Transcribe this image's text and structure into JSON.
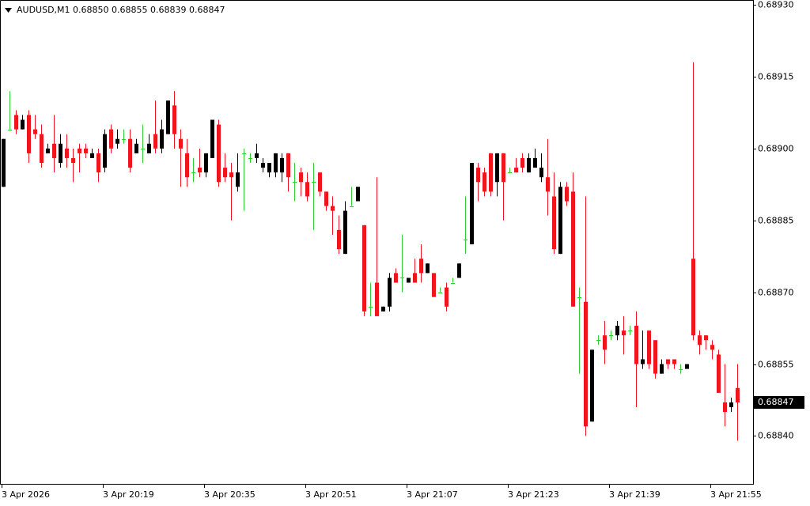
{
  "chart_data": {
    "type": "candlestick",
    "title": "AUDUSD,M1  0.68850 0.68855 0.68839 0.68847",
    "categories": [
      "3 Apr 2026",
      null,
      null,
      null,
      null,
      null,
      null,
      null,
      null,
      null,
      null,
      null,
      null,
      null,
      null,
      null,
      "3 Apr 20:19",
      null,
      null,
      null,
      null,
      null,
      null,
      null,
      null,
      null,
      null,
      null,
      null,
      null,
      null,
      null,
      "3 Apr 20:35",
      null,
      null,
      null,
      null,
      null,
      null,
      null,
      null,
      null,
      null,
      null,
      null,
      null,
      null,
      null,
      "3 Apr 20:51",
      null,
      null,
      null,
      null,
      null,
      null,
      null,
      null,
      null,
      null,
      null,
      null,
      null,
      null,
      null,
      "3 Apr 21:07",
      null,
      null,
      null,
      null,
      null,
      null,
      null,
      null,
      null,
      null,
      null,
      null,
      null,
      null,
      null,
      "3 Apr 21:23",
      null,
      null,
      null,
      null,
      null,
      null,
      null,
      null,
      null,
      null,
      null,
      null,
      null,
      null,
      null,
      "3 Apr 21:39",
      null,
      null,
      null,
      null,
      null,
      null,
      null,
      null,
      null,
      null,
      null,
      null,
      null,
      null,
      null,
      "3 Apr 21:55",
      null,
      null,
      null,
      null
    ],
    "open": [
      0.68892,
      0.68904,
      0.68907,
      0.68904,
      0.68907,
      0.68904,
      0.68903,
      0.68899,
      0.68901,
      0.68897,
      0.689,
      0.68898,
      0.689,
      0.689,
      0.68898,
      0.68899,
      0.68896,
      0.68904,
      0.68901,
      0.68902,
      0.68902,
      0.68899,
      0.689,
      0.68899,
      0.68903,
      0.689,
      0.68903,
      0.68909,
      0.68902,
      0.68899,
      0.68895,
      0.68896,
      0.68895,
      0.68898,
      0.68905,
      0.68896,
      0.68895,
      0.68892,
      0.68899,
      0.68898,
      0.68898,
      0.68896,
      0.68895,
      0.68895,
      0.68895,
      0.68899,
      0.68893,
      0.68895,
      0.68893,
      0.68893,
      0.68895,
      0.68891,
      0.68888,
      0.68883,
      0.68878,
      0.68888,
      0.68889,
      0.68884,
      0.68867,
      0.68872,
      0.68866,
      0.68867,
      0.68874,
      0.68873,
      0.68872,
      0.68874,
      0.68877,
      0.68874,
      0.68874,
      0.6887,
      0.68871,
      0.68872,
      0.68873,
      0.68881,
      0.6888,
      0.68896,
      0.68895,
      0.68899,
      0.68893,
      0.68899,
      0.68895,
      0.68896,
      0.68898,
      0.68895,
      0.68896,
      0.68894,
      0.68894,
      0.6889,
      0.68878,
      0.68892,
      0.68891,
      0.68869,
      0.68868,
      0.68843,
      0.6886,
      0.68861,
      0.68861,
      0.68861,
      0.68862,
      0.68862,
      0.68863,
      0.68855,
      0.68862,
      0.6886,
      0.68853,
      0.68856,
      0.68856,
      0.68854,
      0.68854,
      0.68877,
      0.68861,
      0.68861,
      0.68859,
      0.68857,
      0.68847,
      0.68846,
      0.6885
    ],
    "high": [
      0.68902,
      0.68912,
      0.68908,
      0.68907,
      0.68908,
      0.68907,
      0.68905,
      0.68901,
      0.68907,
      0.68903,
      0.68903,
      0.689,
      0.68901,
      0.68901,
      0.689,
      0.689,
      0.68904,
      0.68905,
      0.68904,
      0.68904,
      0.68904,
      0.68902,
      0.68905,
      0.68903,
      0.6891,
      0.68906,
      0.6891,
      0.68912,
      0.68904,
      0.68902,
      0.68898,
      0.689,
      0.68899,
      0.68906,
      0.68906,
      0.68899,
      0.68897,
      0.68899,
      0.689,
      0.68899,
      0.68901,
      0.68898,
      0.68897,
      0.68899,
      0.68899,
      0.68899,
      0.68897,
      0.68896,
      0.68895,
      0.68897,
      0.68895,
      0.68891,
      0.6889,
      0.68886,
      0.68889,
      0.68892,
      0.68892,
      0.68884,
      0.68872,
      0.68894,
      0.68867,
      0.68874,
      0.68875,
      0.68882,
      0.68873,
      0.68877,
      0.6888,
      0.68876,
      0.68874,
      0.68871,
      0.68872,
      0.68873,
      0.68876,
      0.6889,
      0.68897,
      0.68897,
      0.68896,
      0.68899,
      0.68899,
      0.68899,
      0.68896,
      0.68898,
      0.68899,
      0.68899,
      0.689,
      0.68899,
      0.68902,
      0.68895,
      0.68893,
      0.68893,
      0.68895,
      0.68871,
      0.6889,
      0.68858,
      0.68861,
      0.68864,
      0.68862,
      0.68864,
      0.68865,
      0.68863,
      0.68866,
      0.68862,
      0.68862,
      0.6886,
      0.68856,
      0.68856,
      0.68856,
      0.68855,
      0.68855,
      0.68918,
      0.68862,
      0.68861,
      0.6886,
      0.68858,
      0.68855,
      0.68848,
      0.68855
    ],
    "low": [
      0.68892,
      0.68904,
      0.68903,
      0.68904,
      0.68897,
      0.68902,
      0.68896,
      0.68899,
      0.68895,
      0.68896,
      0.68896,
      0.68893,
      0.68895,
      0.68898,
      0.68898,
      0.68893,
      0.68895,
      0.68899,
      0.689,
      0.68901,
      0.68895,
      0.68899,
      0.68897,
      0.68899,
      0.68899,
      0.68899,
      0.68903,
      0.689,
      0.68892,
      0.68892,
      0.68893,
      0.68894,
      0.68894,
      0.68898,
      0.68892,
      0.68893,
      0.68885,
      0.68891,
      0.68887,
      0.68897,
      0.68897,
      0.68895,
      0.68894,
      0.68894,
      0.68893,
      0.68891,
      0.68889,
      0.6889,
      0.68889,
      0.68883,
      0.6889,
      0.68887,
      0.68882,
      0.68878,
      0.68878,
      0.68888,
      0.68889,
      0.68865,
      0.68865,
      0.68865,
      0.68866,
      0.68866,
      0.68872,
      0.6887,
      0.68872,
      0.68872,
      0.68872,
      0.68874,
      0.68869,
      0.6887,
      0.68866,
      0.68872,
      0.68873,
      0.68878,
      0.6888,
      0.68889,
      0.6889,
      0.6889,
      0.6889,
      0.68885,
      0.68895,
      0.68895,
      0.68895,
      0.68895,
      0.68896,
      0.68893,
      0.68886,
      0.68878,
      0.68878,
      0.68888,
      0.68867,
      0.68853,
      0.6884,
      0.68843,
      0.68859,
      0.68855,
      0.6886,
      0.6886,
      0.68857,
      0.68861,
      0.68846,
      0.68854,
      0.68854,
      0.68852,
      0.68853,
      0.68854,
      0.68854,
      0.68853,
      0.68854,
      0.6886,
      0.68857,
      0.68858,
      0.68856,
      0.68849,
      0.68842,
      0.68845,
      0.68839
    ],
    "close": [
      0.68902,
      0.68904,
      0.68904,
      0.68906,
      0.68899,
      0.68903,
      0.68897,
      0.689,
      0.68898,
      0.68901,
      0.68898,
      0.68897,
      0.68899,
      0.68899,
      0.68899,
      0.68895,
      0.68903,
      0.689,
      0.68902,
      0.68902,
      0.68896,
      0.68901,
      0.689,
      0.68901,
      0.689,
      0.68904,
      0.6891,
      0.68903,
      0.689,
      0.68894,
      0.68895,
      0.68895,
      0.68899,
      0.68906,
      0.68893,
      0.68894,
      0.68894,
      0.68895,
      0.68899,
      0.68898,
      0.68899,
      0.68897,
      0.68897,
      0.68899,
      0.68898,
      0.68894,
      0.68893,
      0.68893,
      0.6889,
      0.68893,
      0.68891,
      0.68888,
      0.68887,
      0.68879,
      0.68887,
      0.68888,
      0.68892,
      0.68866,
      0.68867,
      0.68865,
      0.68867,
      0.68873,
      0.68872,
      0.68873,
      0.68873,
      0.68872,
      0.68874,
      0.68876,
      0.68869,
      0.6887,
      0.68867,
      0.68872,
      0.68876,
      0.68881,
      0.68897,
      0.68893,
      0.68891,
      0.68891,
      0.68899,
      0.68893,
      0.68895,
      0.68895,
      0.68896,
      0.68898,
      0.68898,
      0.68896,
      0.68891,
      0.68879,
      0.68892,
      0.68889,
      0.68867,
      0.68869,
      0.68842,
      0.68858,
      0.6886,
      0.68858,
      0.68861,
      0.68863,
      0.68861,
      0.68862,
      0.68855,
      0.68856,
      0.68855,
      0.68853,
      0.68855,
      0.68855,
      0.68855,
      0.68854,
      0.68855,
      0.68861,
      0.68859,
      0.6886,
      0.68858,
      0.68849,
      0.68845,
      0.68847,
      0.68847
    ],
    "up_color": "#000000",
    "down_color": "#f0141e",
    "doji_color": "#32cd32",
    "ylim": [
      0.6883,
      0.68931
    ],
    "yticks": [
      {
        "value": 0.6893,
        "label": "0.68930"
      },
      0.68915,
      {
        "value": 0.689,
        "label": "0.68900"
      },
      0.68885,
      {
        "value": 0.6887,
        "label": "0.68870"
      },
      0.68855,
      {
        "value": 0.6884,
        "label": "0.68840"
      }
    ]
  }
}
